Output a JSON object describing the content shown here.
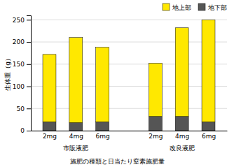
{
  "chart_data": {
    "type": "bar",
    "stacked": true,
    "categories": [
      "2mg",
      "4mg",
      "6mg",
      "2mg",
      "4mg",
      "6mg"
    ],
    "series": [
      {
        "name": "地下部",
        "color": "#555555",
        "values": [
          20,
          18,
          20,
          32,
          32,
          20
        ]
      },
      {
        "name": "地上部",
        "color": "#FFE800",
        "values": [
          152,
          192,
          168,
          120,
          200,
          230
        ]
      }
    ],
    "xlabel": "施肥の種類と日当たり窒素施肥量",
    "ylabel": "生体重（g）",
    "annotations": [
      "市販液肥",
      "改良液肥"
    ],
    "ylim": [
      0,
      260
    ],
    "yticks": [
      0,
      50,
      100,
      150,
      200,
      250
    ],
    "grid": true,
    "legend": "upper right"
  }
}
